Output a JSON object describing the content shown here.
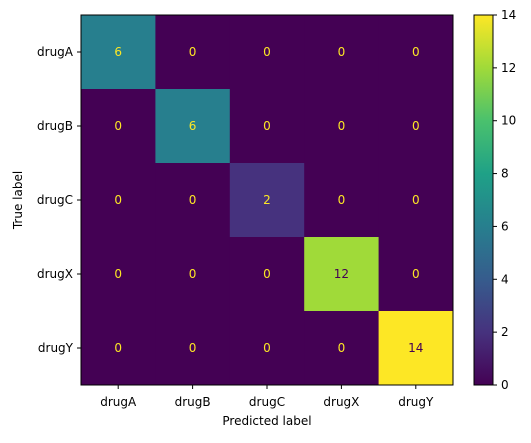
{
  "chart_data": {
    "type": "heatmap",
    "title": "",
    "xlabel": "Predicted label",
    "ylabel": "True label",
    "x_categories": [
      "drugA",
      "drugB",
      "drugC",
      "drugX",
      "drugY"
    ],
    "y_categories": [
      "drugA",
      "drugB",
      "drugC",
      "drugX",
      "drugY"
    ],
    "matrix": [
      [
        6,
        0,
        0,
        0,
        0
      ],
      [
        0,
        6,
        0,
        0,
        0
      ],
      [
        0,
        0,
        2,
        0,
        0
      ],
      [
        0,
        0,
        0,
        12,
        0
      ],
      [
        0,
        0,
        0,
        0,
        14
      ]
    ],
    "colormap": "viridis",
    "vmin": 0,
    "vmax": 14,
    "colorbar_ticks": [
      0,
      2,
      4,
      6,
      8,
      10,
      12,
      14
    ],
    "text_color_low": "#fde725",
    "text_color_high": "#440154",
    "grid": false
  }
}
